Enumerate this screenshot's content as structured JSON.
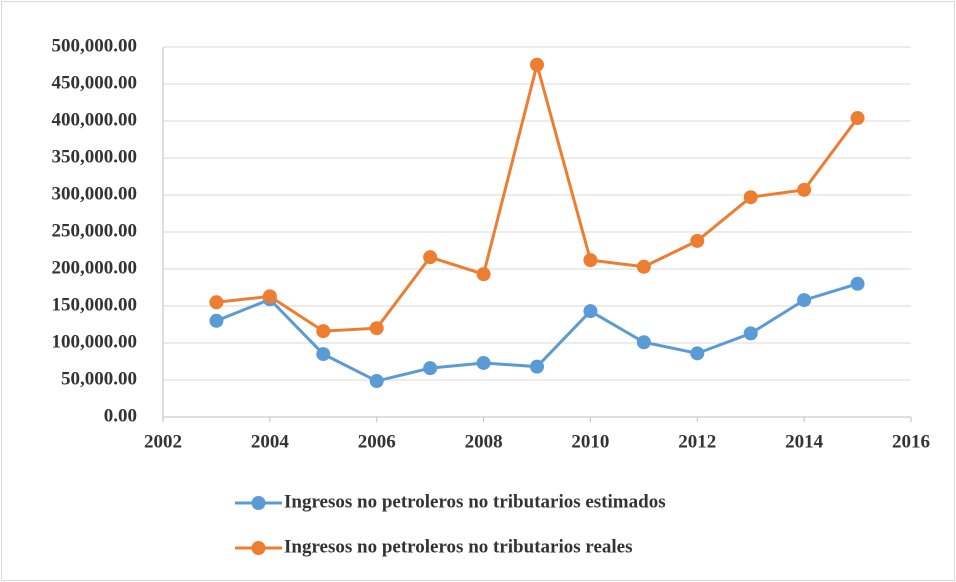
{
  "chart_data": {
    "type": "line",
    "x": [
      2003,
      2004,
      2005,
      2006,
      2007,
      2008,
      2009,
      2010,
      2011,
      2012,
      2013,
      2014,
      2015
    ],
    "series": [
      {
        "name": "Ingresos no petroleros no tributarios estimados",
        "color": "#5b9bd5",
        "values": [
          130000,
          159000,
          85000,
          48600,
          66000,
          73000,
          68000,
          143000,
          101000,
          86000,
          113000,
          158000,
          180000
        ]
      },
      {
        "name": "Ingresos no petroleros no tributarios reales",
        "color": "#ed7d31",
        "values": [
          155000,
          163000,
          116000,
          120000,
          216000,
          193000,
          476000,
          212000,
          203000,
          238000,
          297000,
          307000,
          404000
        ]
      }
    ],
    "xlim": [
      2002,
      2016
    ],
    "xticks": [
      2002,
      2004,
      2006,
      2008,
      2010,
      2012,
      2014,
      2016
    ],
    "ylim": [
      0,
      500000
    ],
    "yticks": [
      {
        "value": 0,
        "label": "0.00"
      },
      {
        "value": 50000,
        "label": "50,000.00"
      },
      {
        "value": 100000,
        "label": "100,000.00"
      },
      {
        "value": 150000,
        "label": "150,000.00"
      },
      {
        "value": 200000,
        "label": "200,000.00"
      },
      {
        "value": 250000,
        "label": "250,000.00"
      },
      {
        "value": 300000,
        "label": "300,000.00"
      },
      {
        "value": 350000,
        "label": "350,000.00"
      },
      {
        "value": 400000,
        "label": "400,000.00"
      },
      {
        "value": 450000,
        "label": "450,000.00"
      },
      {
        "value": 500000,
        "label": "500,000.00"
      }
    ],
    "grid": true,
    "legend": "bottom"
  }
}
